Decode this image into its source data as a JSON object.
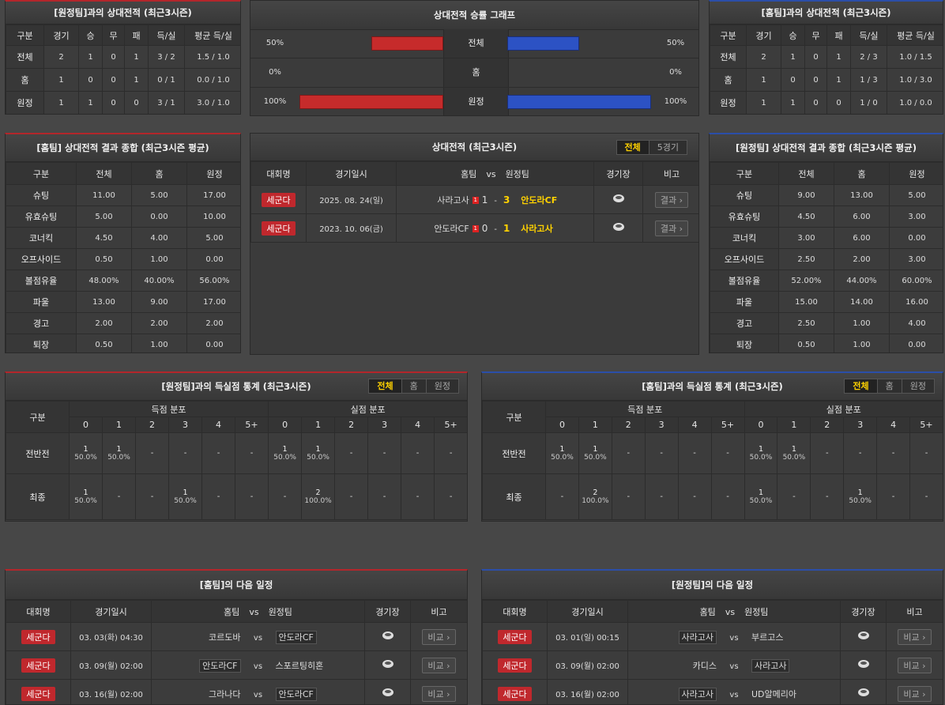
{
  "h2h_away": {
    "title": "[원정팀]과의 상대전적 (최근3시즌)",
    "columns": [
      "구분",
      "경기",
      "승",
      "무",
      "패",
      "득/실",
      "평균 득/실"
    ],
    "rows": [
      [
        "전체",
        "2",
        "1",
        "0",
        "1",
        "3 / 2",
        "1.5 / 1.0"
      ],
      [
        "홈",
        "1",
        "0",
        "0",
        "1",
        "0 / 1",
        "0.0 / 1.0"
      ],
      [
        "원정",
        "1",
        "1",
        "0",
        "0",
        "3 / 1",
        "3.0 / 1.0"
      ]
    ]
  },
  "win_graph": {
    "title": "상대전적 승률 그래프",
    "categories": [
      "전체",
      "홈",
      "원정"
    ],
    "xlim": [
      0,
      100
    ],
    "home": {
      "color": "#c62b2b",
      "values": [
        50,
        0,
        100
      ],
      "value_labels": [
        "50%",
        "0%",
        "100%"
      ]
    },
    "away": {
      "color": "#2c52c4",
      "values": [
        50,
        0,
        100
      ],
      "value_labels": [
        "50%",
        "0%",
        "100%"
      ]
    }
  },
  "h2h_home": {
    "title": "[홈팀]과의 상대전적 (최근3시즌)",
    "columns": [
      "구분",
      "경기",
      "승",
      "무",
      "패",
      "득/실",
      "평균 득/실"
    ],
    "rows": [
      [
        "전체",
        "2",
        "1",
        "0",
        "1",
        "2 / 3",
        "1.0 / 1.5"
      ],
      [
        "홈",
        "1",
        "0",
        "0",
        "1",
        "1 / 3",
        "1.0 / 3.0"
      ],
      [
        "원정",
        "1",
        "1",
        "0",
        "0",
        "1 / 0",
        "1.0 / 0.0"
      ]
    ]
  },
  "home_summary": {
    "title": "[홈팀] 상대전적 결과 종합 (최근3시즌 평균)",
    "columns": [
      "구분",
      "전체",
      "홈",
      "원정"
    ],
    "rows": [
      [
        "슈팅",
        "11.00",
        "5.00",
        "17.00"
      ],
      [
        "유효슈팅",
        "5.00",
        "0.00",
        "10.00"
      ],
      [
        "코너킥",
        "4.50",
        "4.00",
        "5.00"
      ],
      [
        "오프사이드",
        "0.50",
        "1.00",
        "0.00"
      ],
      [
        "볼점유율",
        "48.00%",
        "40.00%",
        "56.00%"
      ],
      [
        "파울",
        "13.00",
        "9.00",
        "17.00"
      ],
      [
        "경고",
        "2.00",
        "2.00",
        "2.00"
      ],
      [
        "퇴장",
        "0.50",
        "1.00",
        "0.00"
      ]
    ]
  },
  "recent_matches": {
    "title": "상대전적 (최근3시즌)",
    "tabs": [
      "전체",
      "5경기"
    ],
    "active_tab": 0,
    "columns": [
      "대회명",
      "경기일시",
      "홈팀",
      "vs",
      "원정팀",
      "경기장",
      "비고"
    ],
    "rows": [
      {
        "league": "세군다",
        "date": "2025. 08. 24(일)",
        "home": "사라고사",
        "red_card": "1",
        "home_score": "1",
        "sep": "-",
        "away_score": "3",
        "away": "안도라CF",
        "winner": "away",
        "note": "결과"
      },
      {
        "league": "세군다",
        "date": "2023. 10. 06(금)",
        "home": "안도라CF",
        "red_card": "1",
        "home_score": "0",
        "sep": "-",
        "away_score": "1",
        "away": "사라고사",
        "winner": "away",
        "note": "결과"
      }
    ]
  },
  "away_summary": {
    "title": "[원정팀] 상대전적 결과 종합 (최근3시즌 평균)",
    "columns": [
      "구분",
      "전체",
      "홈",
      "원정"
    ],
    "rows": [
      [
        "슈팅",
        "9.00",
        "13.00",
        "5.00"
      ],
      [
        "유효슈팅",
        "4.50",
        "6.00",
        "3.00"
      ],
      [
        "코너킥",
        "3.00",
        "6.00",
        "0.00"
      ],
      [
        "오프사이드",
        "2.50",
        "2.00",
        "3.00"
      ],
      [
        "볼점유율",
        "52.00%",
        "44.00%",
        "60.00%"
      ],
      [
        "파울",
        "15.00",
        "14.00",
        "16.00"
      ],
      [
        "경고",
        "2.50",
        "1.00",
        "4.00"
      ],
      [
        "퇴장",
        "0.50",
        "1.00",
        "0.00"
      ]
    ]
  },
  "goals_vs_away": {
    "title": "[원정팀]과의 득실점 통계 (최근3시즌)",
    "tabs": [
      "전체",
      "홈",
      "원정"
    ],
    "active_tab": 0,
    "label_header": "구분",
    "groups": [
      {
        "name": "득점 분포",
        "buckets": [
          "0",
          "1",
          "2",
          "3",
          "4",
          "5+"
        ]
      },
      {
        "name": "실점 분포",
        "buckets": [
          "0",
          "1",
          "2",
          "3",
          "4",
          "5+"
        ]
      }
    ],
    "rows": [
      {
        "label": "전반전",
        "cells": [
          [
            "1",
            "50.0%"
          ],
          [
            "1",
            "50.0%"
          ],
          "-",
          "-",
          "-",
          "-",
          [
            "1",
            "50.0%"
          ],
          [
            "1",
            "50.0%"
          ],
          "-",
          "-",
          "-",
          "-"
        ]
      },
      {
        "label": "최종",
        "cells": [
          [
            "1",
            "50.0%"
          ],
          "-",
          "-",
          [
            "1",
            "50.0%"
          ],
          "-",
          "-",
          "-",
          [
            "2",
            "100.0%"
          ],
          "-",
          "-",
          "-",
          "-"
        ]
      }
    ]
  },
  "goals_vs_home": {
    "title": "[홈팀]과의 득실점 통계 (최근3시즌)",
    "tabs": [
      "전체",
      "홈",
      "원정"
    ],
    "active_tab": 0,
    "label_header": "구분",
    "groups": [
      {
        "name": "득점 분포",
        "buckets": [
          "0",
          "1",
          "2",
          "3",
          "4",
          "5+"
        ]
      },
      {
        "name": "실점 분포",
        "buckets": [
          "0",
          "1",
          "2",
          "3",
          "4",
          "5+"
        ]
      }
    ],
    "rows": [
      {
        "label": "전반전",
        "cells": [
          [
            "1",
            "50.0%"
          ],
          [
            "1",
            "50.0%"
          ],
          "-",
          "-",
          "-",
          "-",
          [
            "1",
            "50.0%"
          ],
          [
            "1",
            "50.0%"
          ],
          "-",
          "-",
          "-",
          "-"
        ]
      },
      {
        "label": "최종",
        "cells": [
          "-",
          [
            "2",
            "100.0%"
          ],
          "-",
          "-",
          "-",
          "-",
          [
            "1",
            "50.0%"
          ],
          "-",
          "-",
          [
            "1",
            "50.0%"
          ],
          "-",
          "-"
        ]
      }
    ]
  },
  "home_schedule": {
    "title": "[홈팀]의 다음 일정",
    "columns": [
      "대회명",
      "경기일시",
      "홈팀",
      "vs",
      "원정팀",
      "경기장",
      "비고"
    ],
    "rows": [
      {
        "league": "세군다",
        "date": "03. 03(화) 04:30",
        "home": "코르도바",
        "vs": "vs",
        "away": "안도라CF",
        "highlight": "away",
        "note": "비교"
      },
      {
        "league": "세군다",
        "date": "03. 09(월) 02:00",
        "home": "안도라CF",
        "vs": "vs",
        "away": "스포르팅히혼",
        "highlight": "home",
        "note": "비교"
      },
      {
        "league": "세군다",
        "date": "03. 16(월) 02:00",
        "home": "그라나다",
        "vs": "vs",
        "away": "안도라CF",
        "highlight": "away",
        "note": "비교"
      }
    ]
  },
  "away_schedule": {
    "title": "[원정팀]의 다음 일정",
    "columns": [
      "대회명",
      "경기일시",
      "홈팀",
      "vs",
      "원정팀",
      "경기장",
      "비고"
    ],
    "rows": [
      {
        "league": "세군다",
        "date": "03. 01(일) 00:15",
        "home": "사라고사",
        "vs": "vs",
        "away": "부르고스",
        "highlight": "home",
        "note": "비교"
      },
      {
        "league": "세군다",
        "date": "03. 09(월) 02:00",
        "home": "카디스",
        "vs": "vs",
        "away": "사라고사",
        "highlight": "away",
        "note": "비교"
      },
      {
        "league": "세군다",
        "date": "03. 16(월) 02:00",
        "home": "사라고사",
        "vs": "vs",
        "away": "UD알메리아",
        "highlight": "home",
        "note": "비교"
      }
    ]
  }
}
